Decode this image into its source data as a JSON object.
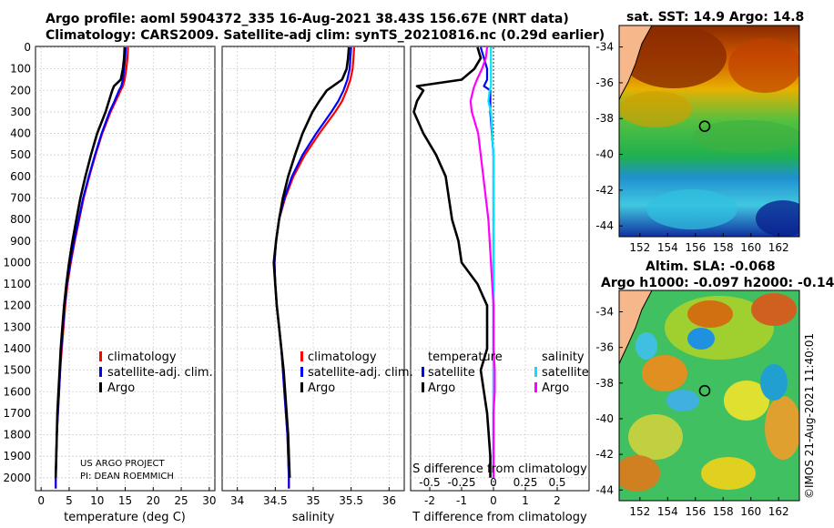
{
  "header": {
    "title_line1": "Argo profile: aoml 5904372_335 16-Aug-2021 38.43S 156.67E (NRT data)",
    "title_line2": "Climatology: CARS2009. Satellite-adj clim: synTS_20210816.nc (0.29d earlier)"
  },
  "maps": {
    "sst_title": "sat. SST: 14.9 Argo: 14.8",
    "sla_title1": "Altim. SLA: -0.068",
    "sla_title2": "Argo h1000: -0.097 h2000: -0.14",
    "x_ticks": [
      "152",
      "154",
      "156",
      "158",
      "160",
      "162"
    ],
    "y_ticks": [
      "-34",
      "-36",
      "-38",
      "-40",
      "-42",
      "-44"
    ],
    "float_lon": 156.67,
    "float_lat": -38.43,
    "lon_range": [
      150.5,
      163.5
    ],
    "lat_range": [
      -44.6,
      -32.8
    ]
  },
  "stamp": "©IMOS 21-Aug-2021 11:40:01",
  "colors": {
    "climatology": "#ff0000",
    "satellite_adj": "#0000ff",
    "argo": "#000000",
    "temp_sat_diff": "#0000ff",
    "sal_sat_diff": "#00e5ff",
    "sal_argo_diff": "#ff00ff"
  },
  "chart_data": [
    {
      "type": "line",
      "title": "",
      "xlabel": "temperature (deg C)",
      "ylabel": "",
      "xlim": [
        -1,
        31
      ],
      "ylim": [
        2060,
        0
      ],
      "x_ticks": [
        "0",
        "5",
        "10",
        "15",
        "20",
        "25",
        "30"
      ],
      "y_ticks": [
        "0",
        "100",
        "200",
        "300",
        "400",
        "500",
        "600",
        "700",
        "800",
        "900",
        "1000",
        "1100",
        "1200",
        "1300",
        "1400",
        "1500",
        "1600",
        "1700",
        "1800",
        "1900",
        "2000"
      ],
      "legend": [
        "climatology",
        "satellite-adj. clim.",
        "Argo"
      ],
      "annotation": [
        "US ARGO PROJECT",
        "PI: DEAN ROEMMICH"
      ],
      "depth": [
        0,
        50,
        100,
        150,
        180,
        200,
        250,
        300,
        400,
        500,
        600,
        700,
        800,
        900,
        1000,
        1100,
        1200,
        1300,
        1400,
        1500,
        1600,
        1700,
        1800,
        1900,
        2000,
        2050
      ],
      "series": [
        {
          "name": "climatology",
          "values": [
            15.5,
            15.4,
            15.2,
            14.9,
            14.6,
            14.2,
            13.3,
            12.4,
            10.9,
            9.7,
            8.6,
            7.6,
            6.8,
            6.0,
            5.3,
            4.7,
            4.3,
            4.0,
            3.7,
            3.4,
            3.2,
            3.0,
            2.8,
            2.7,
            2.6,
            2.6
          ]
        },
        {
          "name": "satellite-adj. clim.",
          "values": [
            15.1,
            15.0,
            14.8,
            14.6,
            14.3,
            13.9,
            13.1,
            12.2,
            10.8,
            9.6,
            8.5,
            7.5,
            6.7,
            5.9,
            5.2,
            4.6,
            4.2,
            3.9,
            3.6,
            3.4,
            3.2,
            3.0,
            2.8,
            2.7,
            2.6,
            2.6
          ]
        },
        {
          "name": "Argo",
          "values": [
            14.9,
            14.8,
            14.6,
            14.2,
            13.0,
            12.7,
            12.1,
            11.5,
            10.0,
            8.9,
            7.9,
            7.0,
            6.3,
            5.6,
            5.0,
            4.5,
            4.1,
            3.8,
            3.5,
            3.3,
            3.1,
            2.9,
            2.8,
            2.7,
            2.6,
            null
          ]
        }
      ]
    },
    {
      "type": "line",
      "title": "",
      "xlabel": "salinity",
      "ylabel": "",
      "xlim": [
        33.8,
        36.2
      ],
      "ylim": [
        2060,
        0
      ],
      "x_ticks": [
        "34",
        "34.5",
        "35",
        "35.5",
        "36"
      ],
      "legend": [
        "climatology",
        "satellite-adj. clim.",
        "Argo"
      ],
      "depth": [
        0,
        50,
        100,
        150,
        200,
        250,
        300,
        400,
        500,
        600,
        700,
        800,
        900,
        1000,
        1100,
        1200,
        1300,
        1400,
        1500,
        1600,
        1700,
        1800,
        1900,
        2000,
        2050
      ],
      "series": [
        {
          "name": "climatology",
          "values": [
            35.54,
            35.53,
            35.52,
            35.49,
            35.44,
            35.38,
            35.29,
            35.08,
            34.89,
            34.74,
            34.63,
            34.55,
            34.51,
            34.49,
            34.5,
            34.52,
            34.55,
            34.58,
            34.6,
            34.62,
            34.64,
            34.66,
            34.67,
            34.68,
            34.68
          ]
        },
        {
          "name": "satellite-adj. clim.",
          "values": [
            35.5,
            35.49,
            35.48,
            35.45,
            35.4,
            35.33,
            35.24,
            35.04,
            34.86,
            34.72,
            34.62,
            34.55,
            34.51,
            34.49,
            34.5,
            34.52,
            34.55,
            34.58,
            34.6,
            34.62,
            34.64,
            34.66,
            34.67,
            34.68,
            34.68
          ]
        },
        {
          "name": "Argo",
          "values": [
            35.47,
            35.46,
            35.44,
            35.38,
            35.18,
            35.08,
            34.99,
            34.86,
            34.76,
            34.67,
            34.6,
            34.55,
            34.51,
            34.48,
            34.5,
            34.52,
            34.55,
            34.58,
            34.61,
            34.63,
            34.65,
            34.67,
            34.68,
            34.69,
            null
          ]
        }
      ]
    },
    {
      "type": "line",
      "title": "",
      "xlabel": "T difference from climatology",
      "ylabel": "",
      "xlim": [
        -2.6,
        3.0
      ],
      "ylim": [
        2060,
        0
      ],
      "x_ticks": [
        "-2",
        "-1",
        "0",
        "1",
        "2"
      ],
      "secondary_axis_label": "S difference from climatology",
      "secondary_x_ticks": [
        "-0.5",
        "-0.25",
        "0",
        "0.25",
        "0.5"
      ],
      "legend_temperature_title": "temperature",
      "legend_salinity_title": "salinity",
      "legend_temperature": [
        "satellite",
        "Argo"
      ],
      "legend_salinity": [
        "satellite",
        "Argo"
      ],
      "depth": [
        0,
        50,
        100,
        150,
        180,
        200,
        250,
        300,
        400,
        500,
        600,
        700,
        800,
        900,
        1000,
        1100,
        1200,
        1300,
        1400,
        1500,
        1600,
        1700,
        1800,
        1900,
        2000
      ],
      "series": [
        {
          "name": "temperature satellite",
          "values": [
            -0.4,
            -0.3,
            -0.2,
            -0.2,
            -0.3,
            -0.1,
            -0.1,
            -0.1,
            -0.05,
            0,
            0,
            0,
            0,
            0,
            0,
            0,
            0,
            0,
            0,
            0,
            0,
            0,
            0,
            0,
            0
          ]
        },
        {
          "name": "temperature Argo",
          "values": [
            -0.5,
            -0.4,
            -0.6,
            -1.0,
            -2.4,
            -2.2,
            -2.4,
            -2.5,
            -2.2,
            -1.8,
            -1.5,
            -1.4,
            -1.3,
            -1.1,
            -1.0,
            -0.5,
            -0.2,
            -0.2,
            -0.2,
            -0.4,
            -0.3,
            -0.2,
            -0.15,
            -0.1,
            -0.1
          ]
        },
        {
          "name": "salinity satellite",
          "values": [
            -0.02,
            -0.02,
            -0.02,
            -0.02,
            -0.02,
            -0.03,
            -0.04,
            -0.02,
            -0.01,
            0,
            0,
            0,
            0,
            0,
            0,
            0,
            0,
            0,
            0,
            0,
            0,
            0,
            0,
            0,
            0
          ]
        },
        {
          "name": "salinity Argo",
          "values": [
            -0.05,
            -0.06,
            -0.09,
            -0.13,
            -0.15,
            -0.16,
            -0.18,
            -0.17,
            -0.12,
            -0.1,
            -0.08,
            -0.06,
            -0.04,
            -0.03,
            -0.02,
            -0.01,
            0,
            0,
            0,
            0.01,
            0.01,
            0,
            0,
            0,
            0
          ]
        }
      ]
    }
  ]
}
